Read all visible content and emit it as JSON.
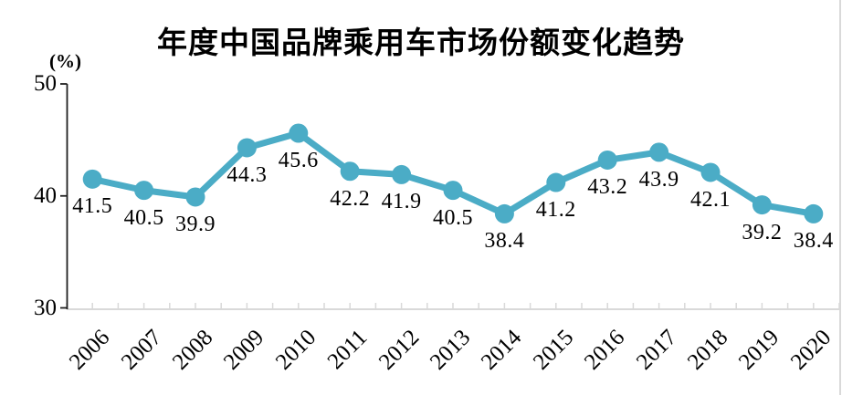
{
  "chart_data": {
    "type": "line",
    "title": "年度中国品牌乘用车市场份额变化趋势",
    "unit_label": "(%)",
    "xlabel": "",
    "ylabel": "(%)",
    "categories": [
      "2006",
      "2007",
      "2008",
      "2009",
      "2010",
      "2011",
      "2012",
      "2013",
      "2014",
      "2015",
      "2016",
      "2017",
      "2018",
      "2019",
      "2020"
    ],
    "values": [
      41.5,
      40.5,
      39.9,
      44.3,
      45.6,
      42.2,
      41.9,
      40.5,
      38.4,
      41.2,
      43.2,
      43.9,
      42.1,
      39.2,
      38.4
    ],
    "data_labels": [
      "41.5",
      "40.5",
      "39.9",
      "44.3",
      "45.6",
      "42.2",
      "41.9",
      "40.5",
      "38.4",
      "41.2",
      "43.2",
      "43.9",
      "42.1",
      "39.2",
      "38.4"
    ],
    "y_ticks": [
      50,
      40,
      30
    ],
    "ylim": [
      30,
      50
    ],
    "x_label_rotation": -45,
    "grid": false,
    "legend_position": "none",
    "colors": {
      "line": "#4BACC6",
      "marker": "#4BACC6",
      "value_axis": "#1f1f1f",
      "category_axis": "#d9d9d9",
      "border": "#d9d9d9",
      "text": "#000000",
      "background": "#ffffff"
    }
  }
}
